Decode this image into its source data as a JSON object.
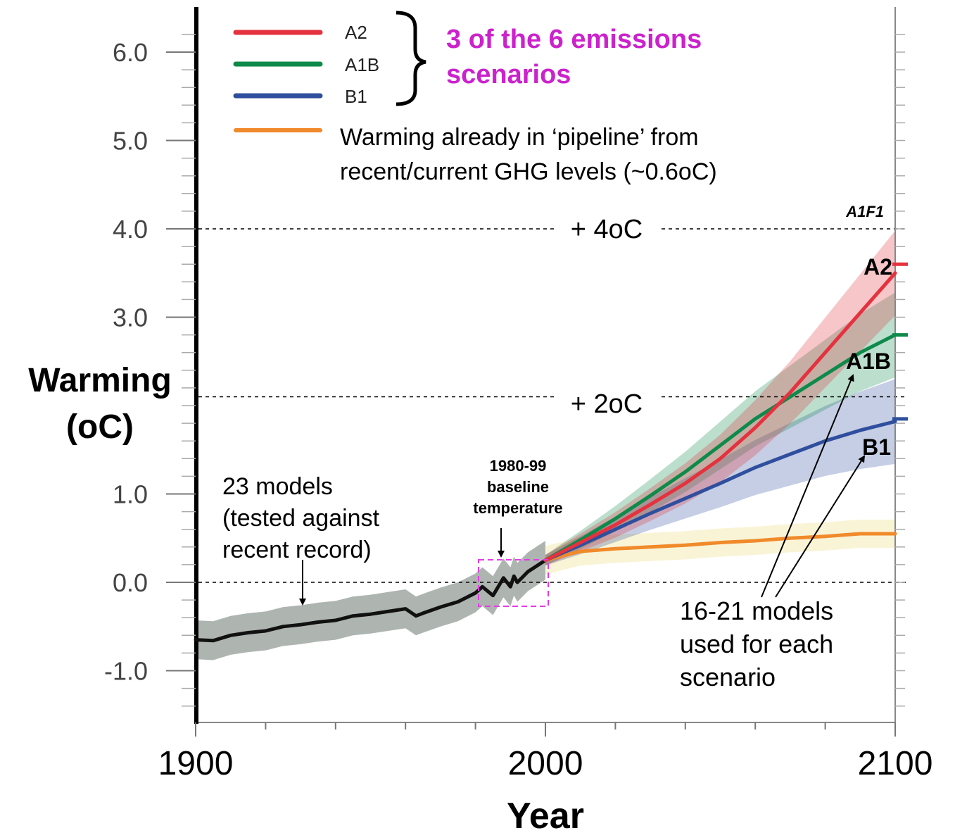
{
  "colors": {
    "A2": "#e4323e",
    "A1B": "#0e8a4a",
    "B1": "#2f4f9e",
    "pipeline": "#f08a2a",
    "pipeline_band": "#e9d96a",
    "historical": "#111111",
    "historical_band": "#9aa39e",
    "brace_text": "#cc22cc",
    "baseline_box": "#e53be5"
  },
  "chart_data": {
    "type": "line",
    "xlabel": "Year",
    "ylabel": "Warming",
    "ylabel_unit": "(oC)",
    "xlim": [
      1900,
      2100
    ],
    "ylim": [
      -1.5,
      6.5
    ],
    "x_ticks": [
      "1900",
      "2000",
      "2100"
    ],
    "y_ticks": [
      "6.0",
      "5.0",
      "4.0",
      "3.0",
      "1.0",
      "0.0",
      "-1.0"
    ],
    "legend": {
      "entries": [
        "A2",
        "A1B",
        "B1"
      ],
      "brace_text_line1": "3 of the 6 emissions",
      "brace_text_line2": "scenarios",
      "pipeline_line1": "Warming already in ‘pipeline’ from",
      "pipeline_line2": "recent/current GHG levels (~0.6oC)"
    },
    "reference_lines": [
      {
        "value": 4.0,
        "label": "+ 4oC"
      },
      {
        "value": 2.1,
        "label": "+ 2oC"
      },
      {
        "value": 0.0,
        "label": ""
      }
    ],
    "series": [
      {
        "name": "historical",
        "x": [
          1900,
          1905,
          1910,
          1915,
          1920,
          1925,
          1930,
          1935,
          1940,
          1945,
          1950,
          1955,
          1960,
          1963,
          1965,
          1970,
          1975,
          1980,
          1982,
          1985,
          1988,
          1990,
          1991,
          1992,
          1995,
          2000
        ],
        "y": [
          -0.65,
          -0.66,
          -0.6,
          -0.57,
          -0.55,
          -0.5,
          -0.48,
          -0.45,
          -0.43,
          -0.38,
          -0.36,
          -0.33,
          -0.3,
          -0.38,
          -0.35,
          -0.28,
          -0.22,
          -0.12,
          -0.05,
          -0.15,
          0.05,
          -0.05,
          0.07,
          0.0,
          0.12,
          0.25
        ]
      },
      {
        "name": "A2",
        "x": [
          2000,
          2010,
          2020,
          2030,
          2040,
          2050,
          2060,
          2070,
          2080,
          2090,
          2100
        ],
        "y": [
          0.25,
          0.45,
          0.65,
          0.88,
          1.12,
          1.4,
          1.75,
          2.15,
          2.6,
          3.05,
          3.5
        ]
      },
      {
        "name": "A1B",
        "x": [
          2000,
          2010,
          2020,
          2030,
          2040,
          2050,
          2060,
          2070,
          2080,
          2090,
          2100
        ],
        "y": [
          0.25,
          0.48,
          0.72,
          0.98,
          1.25,
          1.55,
          1.85,
          2.1,
          2.35,
          2.6,
          2.8
        ]
      },
      {
        "name": "B1",
        "x": [
          2000,
          2010,
          2020,
          2030,
          2040,
          2050,
          2060,
          2070,
          2080,
          2090,
          2100
        ],
        "y": [
          0.25,
          0.42,
          0.6,
          0.78,
          0.95,
          1.12,
          1.3,
          1.45,
          1.6,
          1.72,
          1.82
        ]
      },
      {
        "name": "pipeline",
        "x": [
          2000,
          2010,
          2020,
          2030,
          2040,
          2050,
          2060,
          2070,
          2080,
          2090,
          2100
        ],
        "y": [
          0.25,
          0.35,
          0.38,
          0.4,
          0.42,
          0.45,
          0.47,
          0.5,
          0.52,
          0.55,
          0.55
        ]
      }
    ],
    "end_markers": [
      {
        "name": "A2",
        "value": 3.6
      },
      {
        "name": "A1B",
        "value": 2.8
      },
      {
        "name": "B1",
        "value": 1.85
      }
    ],
    "labels": {
      "A1F1": "A1F1",
      "A2": "A2",
      "A1B": "A1B",
      "B1": "B1"
    },
    "annotations": {
      "models23_line1": "23 models",
      "models23_line2": "(tested against",
      "models23_line3": "recent record)",
      "baseline_line1": "1980-99",
      "baseline_line2": "baseline",
      "baseline_line3": "temperature",
      "models1621_line1": "16-21 models",
      "models1621_line2": "used for each",
      "models1621_line3": "scenario"
    }
  }
}
